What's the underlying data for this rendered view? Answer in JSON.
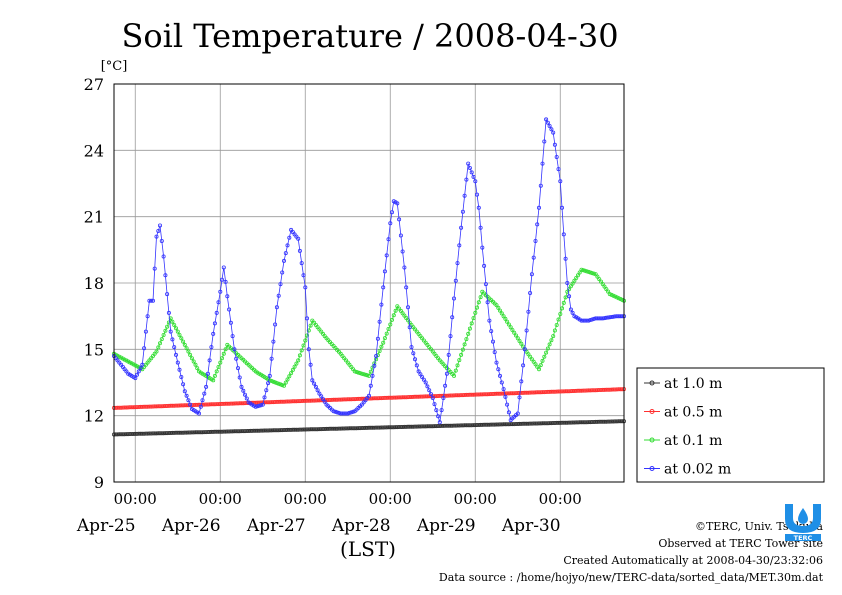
{
  "chart_data": {
    "type": "line",
    "title": "Soil Temperature / 2008-04-30",
    "ylabel": "[°C]",
    "xlabel": "(LST)",
    "ylim": [
      9,
      27
    ],
    "yticks": [
      9,
      12,
      15,
      18,
      21,
      24,
      27
    ],
    "xlim_hours": [
      0,
      144
    ],
    "x_start": "2008-04-24 18:00",
    "x_tick_labels": [
      "00:00",
      "00:00",
      "00:00",
      "00:00",
      "00:00",
      "00:00"
    ],
    "x_date_labels": [
      "Apr-25",
      "Apr-26",
      "Apr-27",
      "Apr-28",
      "Apr-29",
      "Apr-30"
    ],
    "x_tick_hours": [
      6,
      30,
      54,
      78,
      102,
      126
    ],
    "grid": true,
    "legend_position": "right",
    "series": [
      {
        "name": "at 1.0 m",
        "color": "#333333",
        "marker": "dot",
        "x": [
          0,
          144
        ],
        "y": [
          11.15,
          11.75
        ]
      },
      {
        "name": "at 0.5 m",
        "color": "#ff3030",
        "marker": "dot",
        "x": [
          0,
          144
        ],
        "y": [
          12.35,
          13.2
        ]
      },
      {
        "name": "at 0.1 m",
        "color": "#33dd33",
        "marker": "dot",
        "x": [
          0,
          4,
          8,
          12,
          16,
          20,
          24,
          28,
          32,
          36,
          40,
          44,
          48,
          52,
          56,
          60,
          64,
          68,
          72,
          76,
          80,
          84,
          88,
          92,
          96,
          100,
          104,
          108,
          112,
          116,
          120,
          124,
          128,
          132,
          136,
          140,
          144
        ],
        "y": [
          14.8,
          14.45,
          14.1,
          14.9,
          16.4,
          15.2,
          14.0,
          13.6,
          15.2,
          14.6,
          14.0,
          13.6,
          13.35,
          14.5,
          16.3,
          15.5,
          14.8,
          14.0,
          13.8,
          15.3,
          16.95,
          16.1,
          15.3,
          14.5,
          13.8,
          15.7,
          17.6,
          17.0,
          16.0,
          15.0,
          14.1,
          15.6,
          17.6,
          18.6,
          18.4,
          17.5,
          17.2
        ]
      },
      {
        "name": "at 0.02 m",
        "color": "#3333ff",
        "marker": "dot",
        "x": [
          0,
          4,
          6,
          8,
          9,
          10,
          11,
          12,
          13,
          14,
          16,
          18,
          20,
          22,
          24,
          26,
          28,
          30,
          31,
          32,
          34,
          36,
          38,
          40,
          42,
          44,
          46,
          48,
          50,
          52,
          54,
          55,
          56,
          58,
          60,
          62,
          64,
          66,
          68,
          70,
          72,
          74,
          76,
          78,
          79,
          80,
          82,
          84,
          86,
          88,
          90,
          92,
          94,
          96,
          98,
          100,
          102,
          103,
          104,
          106,
          108,
          110,
          112,
          114,
          116,
          118,
          120,
          122,
          124,
          126,
          127,
          128,
          129,
          130,
          132,
          134,
          136,
          138,
          140,
          142,
          144
        ],
        "y": [
          14.7,
          13.9,
          13.7,
          14.3,
          15.8,
          17.2,
          17.2,
          20.1,
          20.6,
          19.2,
          15.8,
          14.4,
          13.1,
          12.3,
          12.1,
          13.3,
          15.7,
          17.6,
          18.7,
          17.4,
          15.0,
          13.3,
          12.6,
          12.4,
          12.5,
          13.8,
          16.9,
          19.0,
          20.4,
          20.0,
          17.8,
          15.0,
          13.6,
          13.0,
          12.5,
          12.2,
          12.1,
          12.1,
          12.2,
          12.5,
          12.9,
          14.7,
          17.8,
          20.7,
          21.7,
          21.6,
          18.7,
          15.1,
          14.0,
          13.5,
          12.8,
          11.7,
          13.9,
          17.3,
          20.5,
          23.4,
          22.6,
          21.4,
          19.6,
          16.3,
          14.4,
          13.2,
          11.8,
          12.1,
          15.0,
          18.4,
          21.4,
          25.4,
          24.8,
          22.6,
          20.2,
          18.0,
          16.8,
          16.5,
          16.3,
          16.3,
          16.4,
          16.4,
          16.45,
          16.5,
          16.5
        ]
      }
    ]
  },
  "footer": {
    "copyright": "©TERC, Univ. Tsukuba",
    "observed": "Observed at TERC Tower site",
    "created": "Created Automatically at 2008-04-30/23:32:06",
    "source": "Data source : /home/hojyo/new/TERC-data/sorted_data/MET.30m.dat"
  },
  "logo": {
    "text": "TERC",
    "color": "#1f8fe6",
    "icon": "terc-logo-icon"
  }
}
